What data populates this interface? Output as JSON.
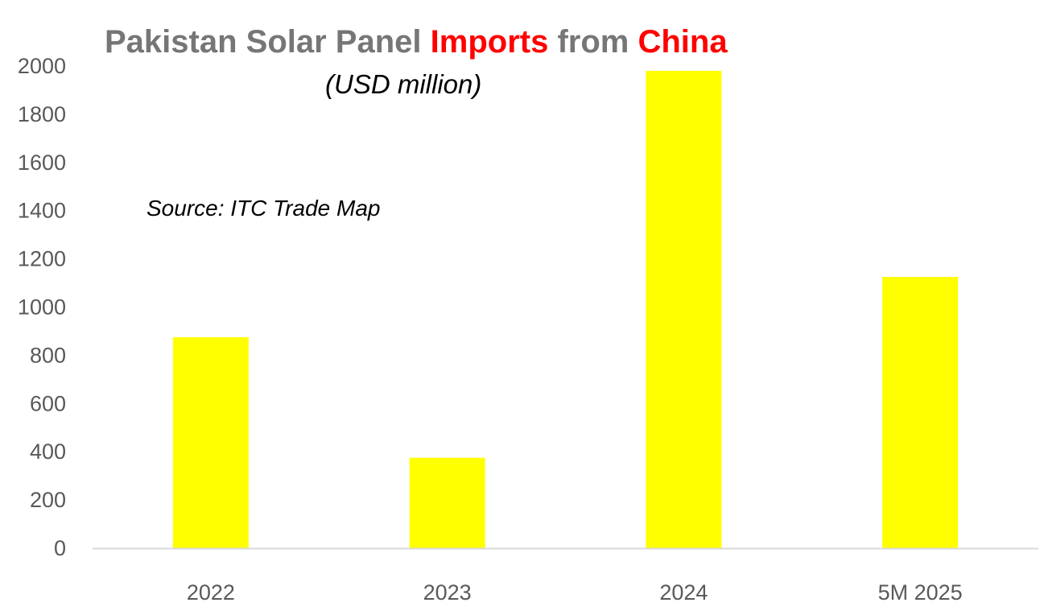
{
  "header": {
    "title_part1": "Pakistan Solar Panel ",
    "title_part2": "Imports",
    "title_part3": " from ",
    "title_part4": "China",
    "subtitle": "(USD million)",
    "source": "Source: ITC Trade Map"
  },
  "colors": {
    "bar": "#ffff00",
    "title_gray": "#767676",
    "title_highlight": "#ff0000",
    "axis_text": "#595959",
    "axis_line": "#d9d9d9"
  },
  "chart_data": {
    "type": "bar",
    "title": "Pakistan Solar Panel Imports from China",
    "subtitle": "(USD million)",
    "annotation": "Source: ITC Trade Map",
    "categories": [
      "2022",
      "2023",
      "2024",
      "5M 2025"
    ],
    "values": [
      875,
      375,
      1980,
      1125
    ],
    "ylim": [
      0,
      2000
    ],
    "yticks": [
      0,
      200,
      400,
      600,
      800,
      1000,
      1200,
      1400,
      1600,
      1800,
      2000
    ],
    "grid": false,
    "legend": "none"
  }
}
